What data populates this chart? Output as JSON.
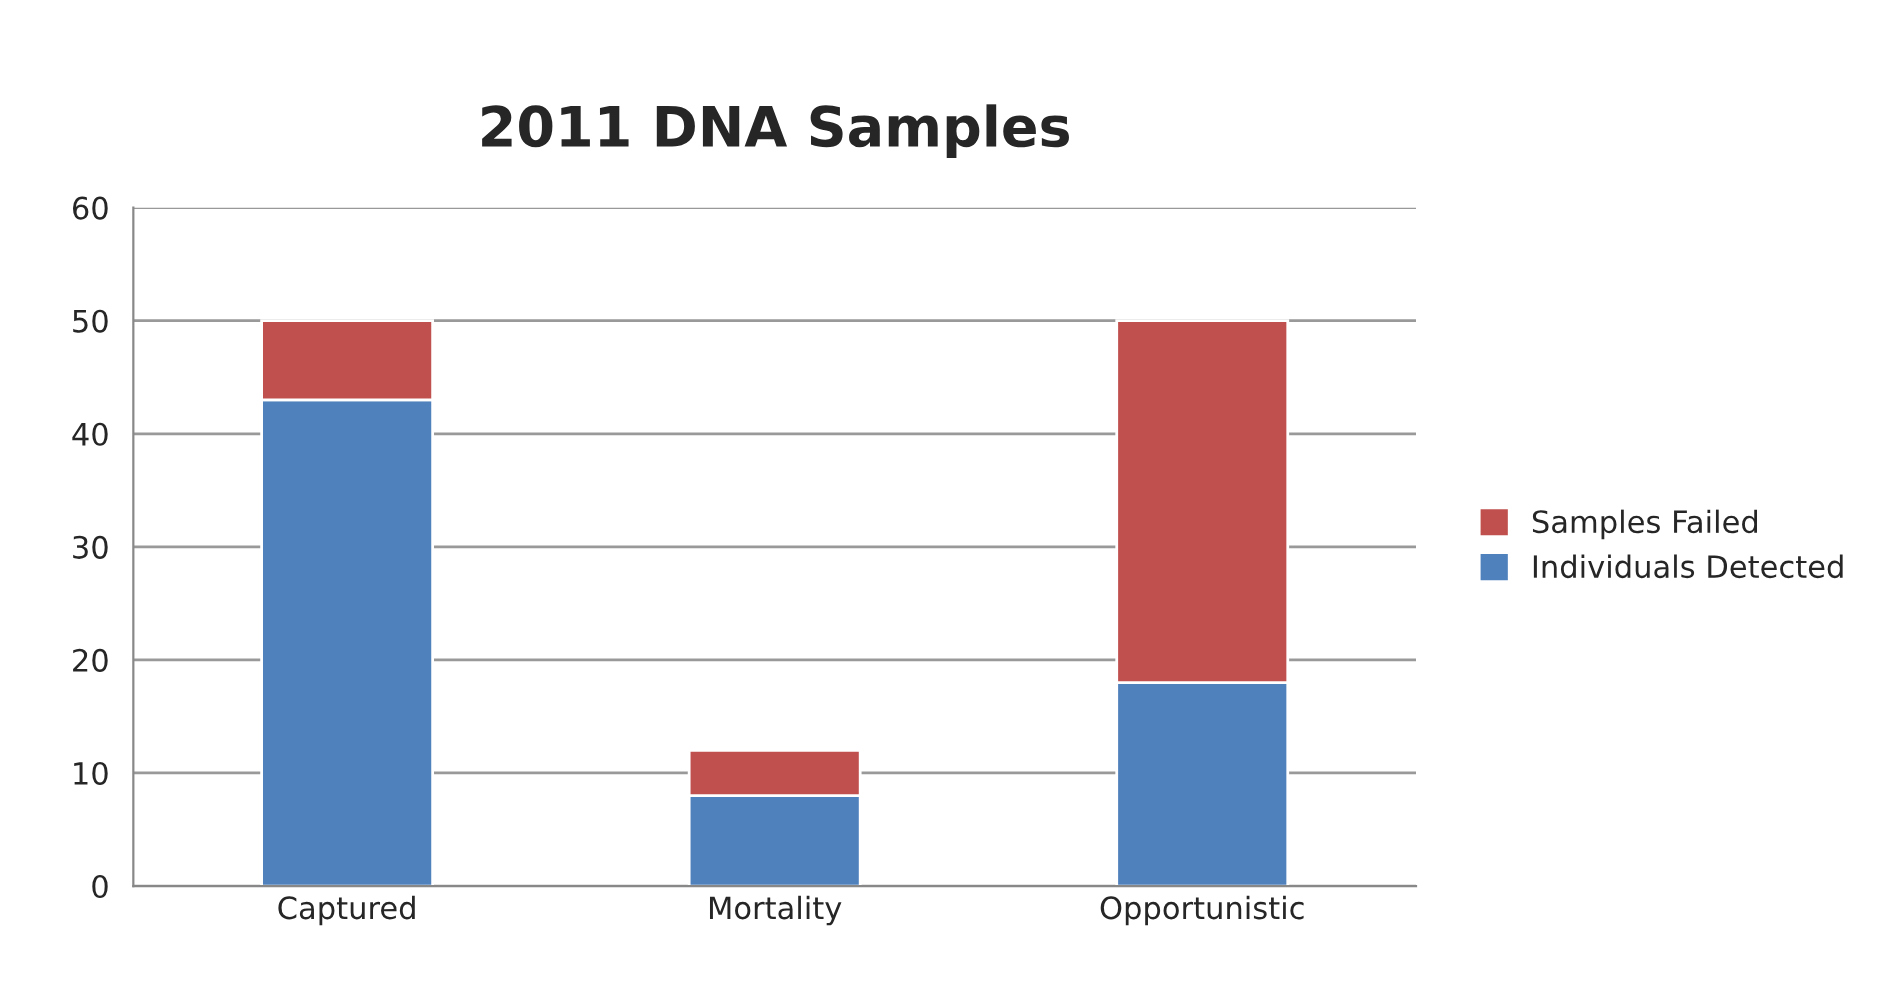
{
  "chart_data": {
    "type": "bar",
    "title": "2011 DNA Samples",
    "categories": [
      "Captured",
      "Mortality",
      "Opportunistic"
    ],
    "stacked": true,
    "series": [
      {
        "name": "Individuals Detected",
        "color": "#4f81bd",
        "values": [
          43,
          8,
          18
        ]
      },
      {
        "name": "Samples Failed",
        "color": "#c0504d",
        "values": [
          7,
          4,
          32
        ]
      }
    ],
    "ylim": [
      0,
      60
    ],
    "yticks": [
      0,
      10,
      20,
      30,
      40,
      50,
      60
    ],
    "grid": "y",
    "legend": "right"
  }
}
